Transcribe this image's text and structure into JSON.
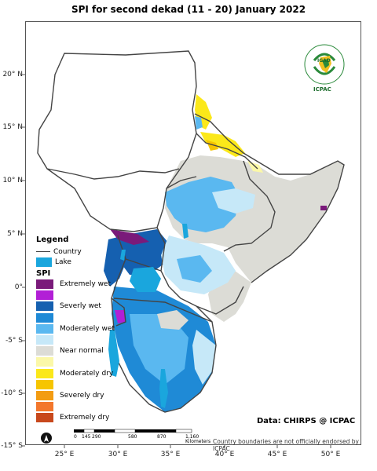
{
  "title": "SPI  for second dekad (11 - 20) January 2022",
  "lat_labels": [
    "20° N",
    "15° N",
    "10° N",
    "5° N",
    "0°",
    "-5° S",
    "-10° S",
    "-15° S"
  ],
  "lon_labels": [
    "25° E",
    "30° E",
    "35° E",
    "40° E",
    "45° E",
    "50° E"
  ],
  "legend": {
    "title": "Legend",
    "country": "Country",
    "lake": "Lake",
    "spi_title": "SPI",
    "classes": [
      {
        "label": "Extremely wet",
        "color": "#7a1a7a"
      },
      {
        "label": "",
        "color": "#b21fd6"
      },
      {
        "label": "Severly wet",
        "color": "#1560b0"
      },
      {
        "label": "",
        "color": "#1f8ad6"
      },
      {
        "label": "Moderately wet",
        "color": "#5ab8f0"
      },
      {
        "label": "",
        "color": "#c6e8f8"
      },
      {
        "label": "Near normal",
        "color": "#dcdcd6"
      },
      {
        "label": "",
        "color": "#fbf8a8"
      },
      {
        "label": "Moderately dry",
        "color": "#fbe81a"
      },
      {
        "label": "",
        "color": "#f6c500"
      },
      {
        "label": "Severely dry",
        "color": "#f39c12"
      },
      {
        "label": "",
        "color": "#f3772c"
      },
      {
        "label": "Extremely dry",
        "color": "#c8481c"
      }
    ],
    "lake_color": "#1aa6dd"
  },
  "data_source": "Data: CHIRPS @ ICPAC",
  "endorsement": "Country boundaries are not officially endorsed by ICPAC",
  "scale": {
    "ticks": [
      "0",
      "145",
      "290",
      "580",
      "870",
      "1,160"
    ],
    "unit": "Kilometers"
  },
  "logo": {
    "top": "IGAD",
    "bottom": "ICPAC"
  }
}
